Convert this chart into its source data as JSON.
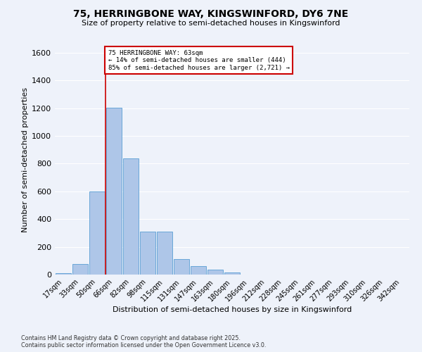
{
  "title_line1": "75, HERRINGBONE WAY, KINGSWINFORD, DY6 7NE",
  "title_line2": "Size of property relative to semi-detached houses in Kingswinford",
  "xlabel": "Distribution of semi-detached houses by size in Kingswinford",
  "ylabel": "Number of semi-detached properties",
  "categories": [
    "17sqm",
    "33sqm",
    "50sqm",
    "66sqm",
    "82sqm",
    "98sqm",
    "115sqm",
    "131sqm",
    "147sqm",
    "163sqm",
    "180sqm",
    "196sqm",
    "212sqm",
    "228sqm",
    "245sqm",
    "261sqm",
    "277sqm",
    "293sqm",
    "310sqm",
    "326sqm",
    "342sqm"
  ],
  "values": [
    10,
    75,
    600,
    1205,
    840,
    310,
    310,
    110,
    60,
    35,
    15,
    0,
    0,
    0,
    0,
    0,
    0,
    0,
    0,
    0,
    0
  ],
  "bar_color": "#aec6e8",
  "bar_edge_color": "#5a9fd4",
  "vline_index": 2.5,
  "annotation_text": "75 HERRINGBONE WAY: 63sqm\n← 14% of semi-detached houses are smaller (444)\n85% of semi-detached houses are larger (2,721) →",
  "annotation_box_color": "#ffffff",
  "annotation_box_edge_color": "#cc0000",
  "vline_color": "#cc0000",
  "ylim": [
    0,
    1650
  ],
  "yticks": [
    0,
    200,
    400,
    600,
    800,
    1000,
    1200,
    1400,
    1600
  ],
  "background_color": "#eef2fa",
  "grid_color": "#ffffff",
  "footer_line1": "Contains HM Land Registry data © Crown copyright and database right 2025.",
  "footer_line2": "Contains public sector information licensed under the Open Government Licence v3.0."
}
